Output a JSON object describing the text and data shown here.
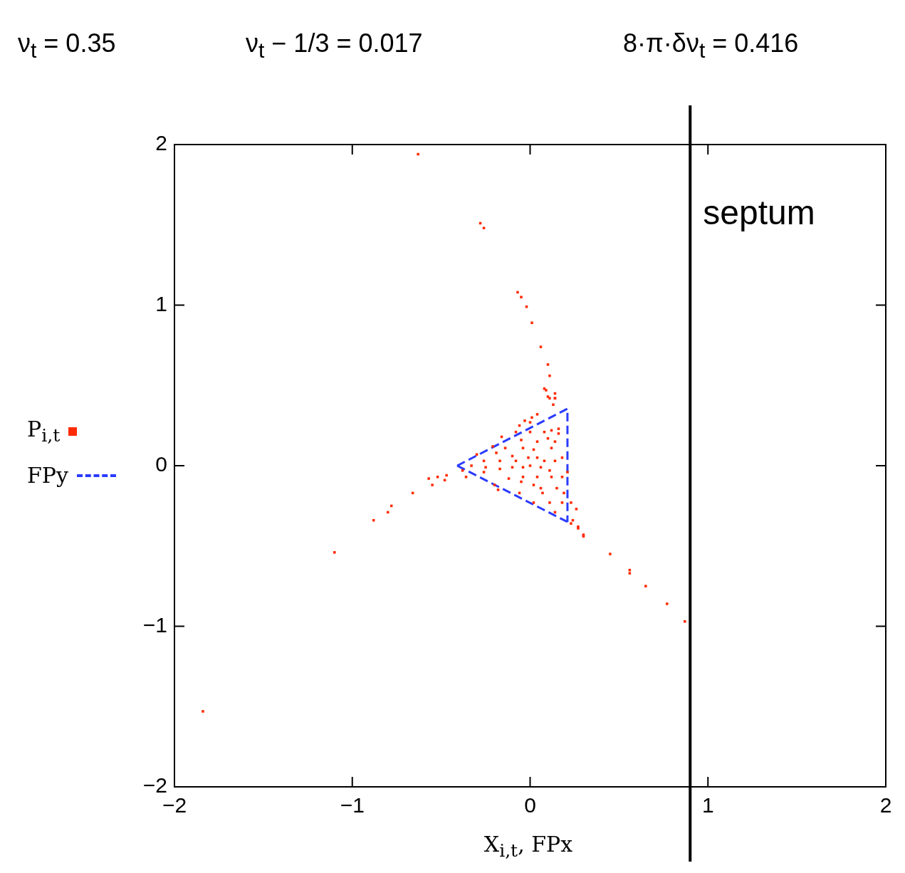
{
  "chart_data": {
    "type": "scatter",
    "annotations": [
      "ν$_{t}$ = 0.35",
      "ν$_{t}$ − 1/3 = 0.017",
      "8·π·δν$_{t}$ = 0.416"
    ],
    "xlabel": "X$_{i,t}$, FPx",
    "xlim": [
      -2,
      2
    ],
    "xticks": [
      -2,
      -1,
      0,
      1,
      2
    ],
    "ylim": [
      -2,
      2
    ],
    "yticks": [
      -2,
      -1,
      0,
      1,
      2
    ],
    "grid": false,
    "legend": "left",
    "marker": "square",
    "ref_lines": [
      {
        "axis": "x",
        "value": 0.9,
        "label": "septum",
        "color": "#000000"
      }
    ],
    "series": [
      {
        "name": "P$_{i,t}$",
        "type": "scatter",
        "color": "#ff2a00",
        "x": [
          -0.63,
          -0.28,
          -0.26,
          -0.07,
          -0.05,
          -0.02,
          0.01,
          0.06,
          0.1,
          0.11,
          0.09,
          0.14,
          0.1,
          0.14,
          0.3,
          0.45,
          0.56,
          0.56,
          0.65,
          0.77,
          0.87,
          0.23,
          0.27,
          -1.84,
          -1.1,
          -0.88,
          -0.8,
          -0.78,
          -0.66,
          -0.55,
          -0.57,
          -0.52,
          -0.47,
          0.08,
          0.11,
          0.14,
          0.13,
          0.04,
          0.01,
          -0.03,
          0.0,
          -0.06,
          -0.08,
          0.0,
          0.08,
          0.12,
          0.16,
          0.16,
          -0.16,
          -0.05,
          0.04,
          0.1,
          0.14,
          -0.21,
          -0.14,
          -0.04,
          0.02,
          0.12,
          -0.3,
          -0.19,
          -0.1,
          -0.01,
          0.04,
          0.08,
          0.18,
          -0.33,
          -0.26,
          -0.17,
          -0.08,
          0.0,
          0.14,
          -0.38,
          -0.25,
          -0.17,
          -0.1,
          -0.04,
          0.06,
          0.11,
          0.21,
          -0.26,
          -0.12,
          -0.04,
          0.04,
          0.12,
          0.18,
          -0.48,
          -0.36,
          -0.2,
          -0.05,
          0.02,
          0.06,
          0.15,
          -0.18,
          -0.06,
          0.07,
          0.19,
          0.02,
          0.11,
          0.18,
          0.14,
          0.23,
          0.26,
          0.24,
          0.27,
          0.3
        ],
        "values": [
          1.94,
          1.51,
          1.48,
          1.08,
          1.05,
          0.99,
          0.89,
          0.74,
          0.63,
          0.56,
          0.47,
          0.45,
          0.43,
          0.42,
          -0.43,
          -0.55,
          -0.65,
          -0.67,
          -0.75,
          -0.86,
          -0.97,
          -0.36,
          -0.39,
          -1.53,
          -0.54,
          -0.34,
          -0.29,
          -0.25,
          -0.17,
          -0.12,
          -0.08,
          -0.07,
          -0.06,
          0.48,
          0.42,
          0.42,
          0.38,
          0.32,
          0.3,
          0.28,
          0.27,
          0.25,
          0.21,
          0.21,
          0.21,
          0.22,
          0.23,
          0.2,
          0.18,
          0.16,
          0.15,
          0.17,
          0.15,
          0.12,
          0.11,
          0.11,
          0.1,
          0.11,
          0.07,
          0.08,
          0.06,
          0.05,
          0.05,
          0.03,
          0.05,
          0.0,
          0.03,
          0.03,
          0.03,
          0.0,
          0.03,
          -0.03,
          -0.01,
          -0.02,
          -0.01,
          -0.01,
          -0.01,
          -0.03,
          -0.04,
          -0.04,
          -0.08,
          -0.07,
          -0.07,
          -0.07,
          -0.07,
          -0.09,
          -0.07,
          -0.12,
          -0.1,
          -0.12,
          -0.14,
          -0.14,
          -0.15,
          -0.17,
          -0.17,
          -0.17,
          -0.23,
          -0.23,
          -0.23,
          -0.29,
          -0.23,
          -0.27,
          -0.34,
          -0.38,
          -0.44
        ]
      },
      {
        "name": "FPy",
        "type": "line",
        "line_style": "dashed",
        "marker": "none",
        "color": "#2b3cff",
        "x": [
          -0.41,
          0.21,
          0.21
        ],
        "values": [
          0,
          0.355,
          -0.35
        ]
      },
      {
        "type": "line",
        "line_style": "dashed",
        "marker": "none",
        "color": "#2b3cff",
        "x": [
          -0.41,
          0.21
        ],
        "values": [
          0,
          -0.35
        ]
      }
    ]
  }
}
